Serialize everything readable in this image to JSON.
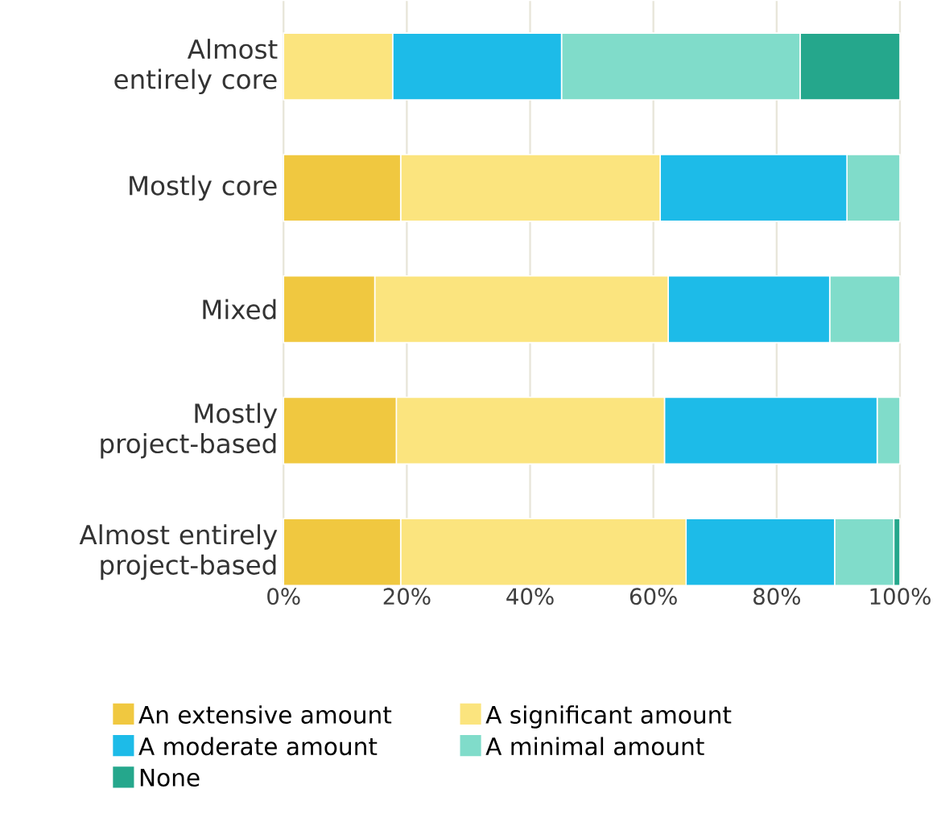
{
  "chart_data": {
    "type": "bar",
    "orientation": "horizontal",
    "stacked": true,
    "categories": [
      "Almost entirely core",
      "Mostly core",
      "Mixed",
      "Mostly project-based",
      "Almost entirely project-based"
    ],
    "series": [
      {
        "name": "An extensive amount",
        "color": "#f0c840",
        "values": [
          0,
          19,
          14.8,
          18.3,
          19
        ]
      },
      {
        "name": "A significant amount",
        "color": "#fbe47e",
        "values": [
          17.7,
          42.1,
          47.6,
          43.5,
          46.3
        ]
      },
      {
        "name": "A moderate amount",
        "color": "#1dbbe8",
        "values": [
          27.4,
          30.3,
          26.2,
          34.5,
          24.1
        ]
      },
      {
        "name": "A minimal amount",
        "color": "#80dcca",
        "values": [
          38.7,
          8.6,
          11.4,
          3.7,
          9.6
        ]
      },
      {
        "name": "None",
        "color": "#25a78c",
        "values": [
          16.2,
          0,
          0,
          0,
          1
        ]
      }
    ],
    "xlim": [
      0,
      100
    ],
    "xticks": [
      {
        "value": 0,
        "label": "0%"
      },
      {
        "value": 20,
        "label": "20%"
      },
      {
        "value": 40,
        "label": "40%"
      },
      {
        "value": 60,
        "label": "60%"
      },
      {
        "value": 80,
        "label": "80%"
      },
      {
        "value": 100,
        "label": "100%"
      }
    ],
    "grid": "x",
    "legend": "bottom"
  }
}
